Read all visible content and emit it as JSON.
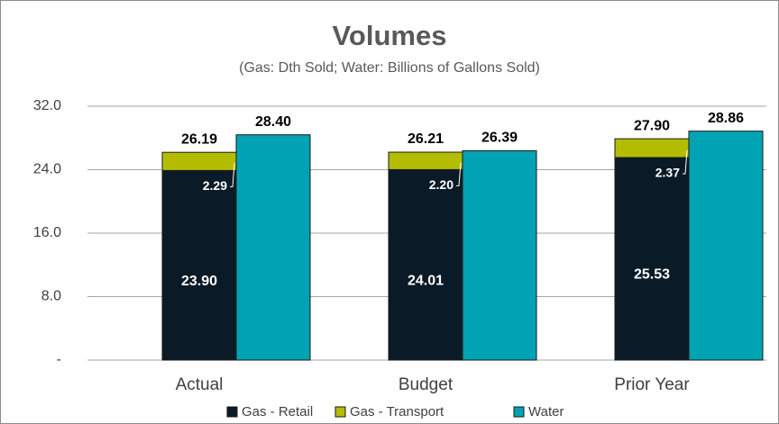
{
  "chart_data": {
    "type": "bar",
    "title": "Volumes",
    "subtitle": "(Gas: Dth Sold; Water: Billions of Gallons Sold)",
    "categories": [
      "Actual",
      "Budget",
      "Prior Year"
    ],
    "series": [
      {
        "name": "Gas - Retail",
        "color": "#0b1a27",
        "stack": 0,
        "values": [
          23.9,
          24.01,
          25.53
        ],
        "value_labels": [
          "23.90",
          "24.01",
          "25.53"
        ]
      },
      {
        "name": "Gas - Transport",
        "color": "#b4bc00",
        "stack": 0,
        "values": [
          2.29,
          2.2,
          2.37
        ],
        "value_labels": [
          "2.29",
          "2.20",
          "2.37"
        ]
      },
      {
        "name": "Water",
        "color": "#00a3b3",
        "stack": 1,
        "values": [
          28.4,
          26.39,
          28.86
        ],
        "value_labels": [
          "28.40",
          "26.39",
          "28.86"
        ]
      }
    ],
    "total_labels": [
      "26.19",
      "26.21",
      "27.90"
    ],
    "ylim": [
      0,
      32
    ],
    "yticks": [
      {
        "value": 0,
        "label": "-"
      },
      {
        "value": 8,
        "label": "8.0"
      },
      {
        "value": 16,
        "label": "16.0"
      },
      {
        "value": 24,
        "label": "24.0"
      },
      {
        "value": 32,
        "label": "32.0"
      }
    ],
    "grid": true,
    "legend": "bottom"
  }
}
